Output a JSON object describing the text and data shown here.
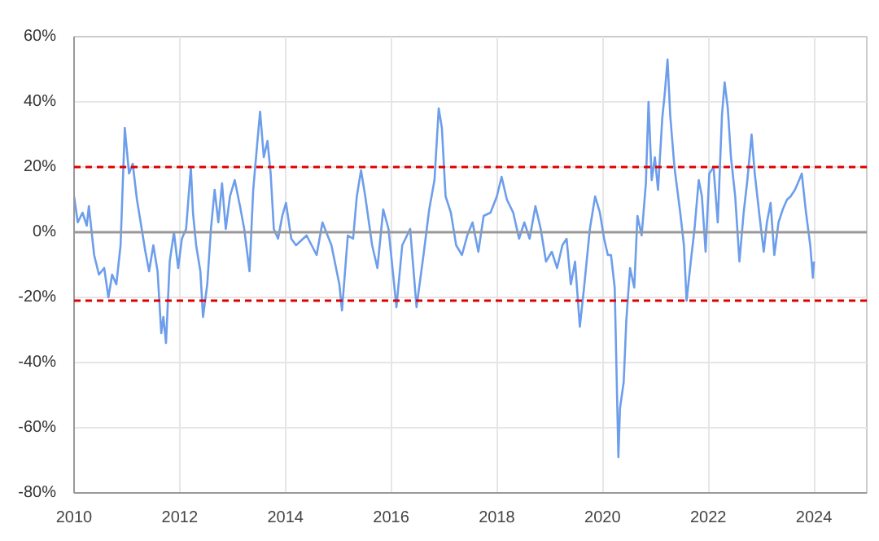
{
  "chart_data": {
    "type": "line",
    "x": [
      2010.0,
      2010.07,
      2010.16,
      2010.24,
      2010.28,
      2010.38,
      2010.47,
      2010.57,
      2010.65,
      2010.72,
      2010.8,
      2010.88,
      2010.96,
      2011.04,
      2011.11,
      2011.19,
      2011.27,
      2011.35,
      2011.42,
      2011.5,
      2011.58,
      2011.65,
      2011.69,
      2011.74,
      2011.81,
      2011.89,
      2011.97,
      2012.04,
      2012.12,
      2012.21,
      2012.25,
      2012.31,
      2012.39,
      2012.44,
      2012.52,
      2012.59,
      2012.66,
      2012.73,
      2012.8,
      2012.87,
      2012.95,
      2013.04,
      2013.14,
      2013.22,
      2013.32,
      2013.39,
      2013.47,
      2013.52,
      2013.59,
      2013.66,
      2013.72,
      2013.78,
      2013.86,
      2013.94,
      2014.01,
      2014.11,
      2014.2,
      2014.4,
      2014.59,
      2014.7,
      2014.87,
      2015.02,
      2015.07,
      2015.18,
      2015.28,
      2015.35,
      2015.43,
      2015.51,
      2015.64,
      2015.74,
      2015.85,
      2015.95,
      2016.1,
      2016.21,
      2016.36,
      2016.48,
      2016.62,
      2016.72,
      2016.82,
      2016.9,
      2016.96,
      2017.03,
      2017.13,
      2017.23,
      2017.34,
      2017.44,
      2017.54,
      2017.65,
      2017.75,
      2017.88,
      2018.0,
      2018.09,
      2018.19,
      2018.31,
      2018.42,
      2018.52,
      2018.62,
      2018.73,
      2018.83,
      2018.93,
      2019.04,
      2019.14,
      2019.24,
      2019.32,
      2019.4,
      2019.48,
      2019.57,
      2019.65,
      2019.76,
      2019.86,
      2019.95,
      2020.03,
      2020.1,
      2020.16,
      2020.23,
      2020.3,
      2020.33,
      2020.4,
      2020.45,
      2020.52,
      2020.56,
      2020.6,
      2020.66,
      2020.74,
      2020.82,
      2020.87,
      2020.93,
      2020.99,
      2021.05,
      2021.13,
      2021.18,
      2021.23,
      2021.28,
      2021.36,
      2021.47,
      2021.54,
      2021.59,
      2021.67,
      2021.74,
      2021.82,
      2021.88,
      2021.95,
      2022.02,
      2022.1,
      2022.18,
      2022.26,
      2022.31,
      2022.37,
      2022.43,
      2022.51,
      2022.59,
      2022.67,
      2022.74,
      2022.82,
      2022.88,
      2022.97,
      2023.05,
      2023.11,
      2023.18,
      2023.25,
      2023.33,
      2023.41,
      2023.49,
      2023.56,
      2023.64,
      2023.72,
      2023.77,
      2023.85,
      2023.93,
      2023.98,
      2024.0
    ],
    "values": [
      11,
      3,
      6,
      2,
      8,
      -7,
      -13,
      -11,
      -20,
      -13,
      -16,
      -4,
      32,
      18,
      21,
      10,
      2,
      -6,
      -12,
      -4,
      -12,
      -31,
      -26,
      -34,
      -9,
      0,
      -11,
      -2,
      1,
      20,
      6,
      -4,
      -12,
      -26,
      -16,
      1,
      13,
      3,
      15,
      1,
      11,
      16,
      8,
      1,
      -12,
      13,
      28,
      37,
      23,
      28,
      18,
      1,
      -2,
      5,
      9,
      -2,
      -4,
      -1,
      -7,
      3,
      -4,
      -16,
      -24,
      -1,
      -2,
      11,
      19,
      11,
      -4,
      -11,
      7,
      1,
      -23,
      -4,
      1,
      -23,
      -6,
      7,
      16,
      38,
      32,
      11,
      6,
      -4,
      -7,
      -1,
      3,
      -6,
      5,
      6,
      11,
      17,
      10,
      6,
      -2,
      3,
      -2,
      8,
      1,
      -9,
      -6,
      -11,
      -4,
      -2,
      -16,
      -9,
      -29,
      -17,
      1,
      11,
      6,
      -2,
      -7,
      -7,
      -17,
      -69,
      -54,
      -46,
      -27,
      -11,
      -14,
      -17,
      5,
      -1,
      15,
      40,
      16,
      23,
      13,
      35,
      43,
      53,
      36,
      20,
      6,
      -4,
      -21,
      -9,
      1,
      16,
      11,
      -6,
      18,
      20,
      3,
      36,
      46,
      38,
      23,
      11,
      -9,
      6,
      16,
      30,
      18,
      5,
      -6,
      3,
      9,
      -7,
      3,
      7,
      10,
      11,
      13,
      16,
      18,
      6,
      -4,
      -14,
      -9
    ],
    "color": "#6d9eeb",
    "xlim": [
      2010,
      2025
    ],
    "xticks": [
      2010,
      2012,
      2014,
      2016,
      2018,
      2020,
      2022,
      2024
    ],
    "ylim": [
      -80,
      60
    ],
    "yticks": [
      {
        "value": -80,
        "label": "-80%"
      },
      {
        "value": -60,
        "label": "-60%"
      },
      {
        "value": -40,
        "label": "-40%"
      },
      {
        "value": -20,
        "label": "-20%"
      },
      {
        "value": 0,
        "label": "0%"
      },
      {
        "value": 20,
        "label": "20%"
      },
      {
        "value": 40,
        "label": "40%"
      },
      {
        "value": 60,
        "label": "60%"
      }
    ],
    "ref_lines": [
      {
        "axis": "y",
        "value": 20,
        "color": "#e00000",
        "line_style": "dashed"
      },
      {
        "axis": "y",
        "value": -21,
        "color": "#e00000",
        "line_style": "dashed"
      },
      {
        "axis": "y",
        "value": 0,
        "color": "#999999",
        "line_style": "solid"
      }
    ],
    "grid": true
  }
}
